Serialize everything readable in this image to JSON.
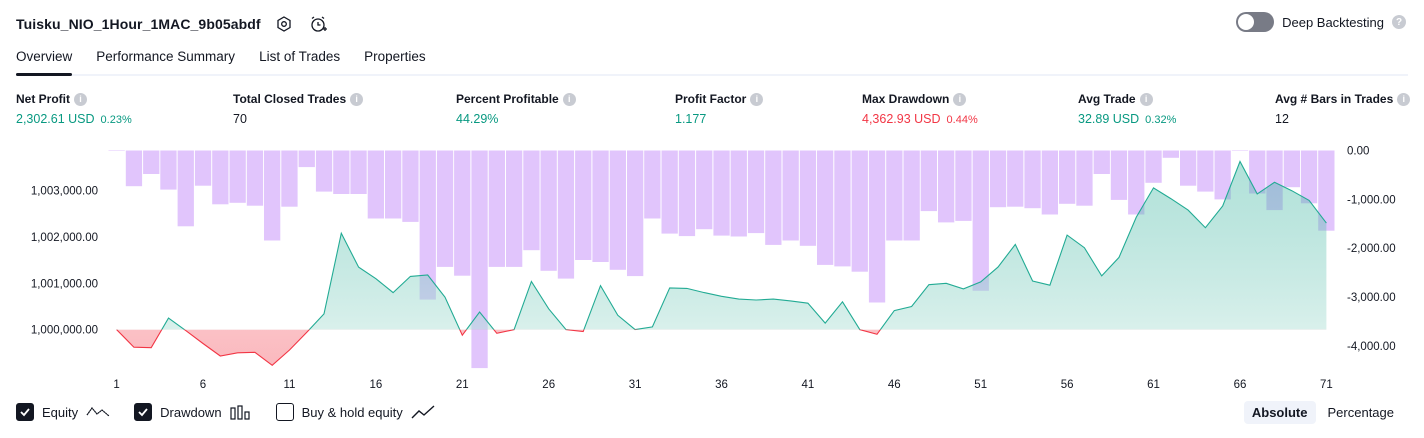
{
  "header": {
    "strategy_name": "Tuisku_NIO_1Hour_1MAC_9b05abdf",
    "icons": [
      "settings-icon",
      "alarm-add-icon"
    ]
  },
  "deep_backtesting": {
    "label": "Deep Backtesting",
    "enabled": false
  },
  "tabs": [
    {
      "label": "Overview",
      "active": true
    },
    {
      "label": "Performance Summary",
      "active": false
    },
    {
      "label": "List of Trades",
      "active": false
    },
    {
      "label": "Properties",
      "active": false
    }
  ],
  "metrics": {
    "net_profit": {
      "label": "Net Profit",
      "value": "2,302.61 USD",
      "pct": "0.23%"
    },
    "total_closed_trades": {
      "label": "Total Closed Trades",
      "value": "70"
    },
    "percent_profitable": {
      "label": "Percent Profitable",
      "value": "44.29%"
    },
    "profit_factor": {
      "label": "Profit Factor",
      "value": "1.177"
    },
    "max_drawdown": {
      "label": "Max Drawdown",
      "value": "4,362.93 USD",
      "pct": "0.44%"
    },
    "avg_trade": {
      "label": "Avg Trade",
      "value": "32.89 USD",
      "pct": "0.32%"
    },
    "avg_bars": {
      "label": "Avg # Bars in Trades",
      "value": "12"
    }
  },
  "chart_data": {
    "type": "line",
    "x_tick_labels": [
      "1",
      "6",
      "11",
      "16",
      "21",
      "26",
      "31",
      "36",
      "41",
      "46",
      "51",
      "56",
      "61",
      "66",
      "71"
    ],
    "left_axis_labels": [
      "1,003,000.00",
      "1,002,000.00",
      "1,001,000.00",
      "1,000,000.00"
    ],
    "right_axis_labels": [
      "0.00",
      "-1,000.00",
      "-2,000.00",
      "-3,000.00",
      "-4,000.00"
    ],
    "equity_baseline": 1000000,
    "left_ylim": [
      999150,
      1003900
    ],
    "right_ylim": [
      -4470,
      30
    ],
    "equity": [
      1000000,
      999620,
      999610,
      1000250,
      999980,
      999700,
      999430,
      999500,
      999510,
      999230,
      999560,
      999940,
      1000340,
      1002080,
      1001350,
      1001100,
      1000800,
      1001150,
      1001180,
      1000700,
      999880,
      1000380,
      999920,
      1000000,
      1001040,
      1000450,
      1000000,
      999960,
      1000950,
      1000310,
      1000000,
      1000060,
      1000900,
      1000890,
      1000800,
      1000720,
      1000660,
      1000640,
      1000660,
      1000620,
      1000570,
      1000140,
      1000600,
      1000000,
      999900,
      1000410,
      1000500,
      1000970,
      1001000,
      1000880,
      1001030,
      1001350,
      1001840,
      1001050,
      1000960,
      1002040,
      1001770,
      1001160,
      1001560,
      1002430,
      1003060,
      1002830,
      1002580,
      1002200,
      1002670,
      1003630,
      1002930,
      1003180,
      1003000,
      1002790,
      1002300
    ],
    "drawdown": [
      0,
      -730,
      -480,
      -800,
      -1550,
      -720,
      -1100,
      -1070,
      -1130,
      -1840,
      -1150,
      -340,
      -840,
      -890,
      -890,
      -1390,
      -1390,
      -1460,
      -3050,
      -2380,
      -2560,
      -4450,
      -2380,
      -2380,
      -2040,
      -2460,
      -2620,
      -2240,
      -2280,
      -2440,
      -2570,
      -1390,
      -1700,
      -1750,
      -1610,
      -1740,
      -1760,
      -1690,
      -1930,
      -1840,
      -1950,
      -2340,
      -2370,
      -2480,
      -3110,
      -1840,
      -1840,
      -1240,
      -1470,
      -1440,
      -2870,
      -1160,
      -1150,
      -1180,
      -1310,
      -1090,
      -1130,
      -480,
      -1010,
      -1310,
      -660,
      -150,
      -720,
      -840,
      -1000,
      -1,
      -880,
      -1220,
      -750,
      -1080,
      -1640
    ]
  },
  "colors": {
    "equity_line": "#22ab94",
    "equity_fill": "#cdebe4",
    "loss_line": "#f23645",
    "loss_fill": "#fbd6da",
    "drawdown_bar": "#e1c5fc",
    "accent_green": "#089981",
    "accent_red": "#f23645"
  },
  "legend": {
    "equity": {
      "label": "Equity",
      "checked": true
    },
    "drawdown": {
      "label": "Drawdown",
      "checked": true
    },
    "buy_hold": {
      "label": "Buy & hold equity",
      "checked": false
    }
  },
  "view_mode": {
    "absolute": "Absolute",
    "percentage": "Percentage",
    "active": "absolute"
  }
}
